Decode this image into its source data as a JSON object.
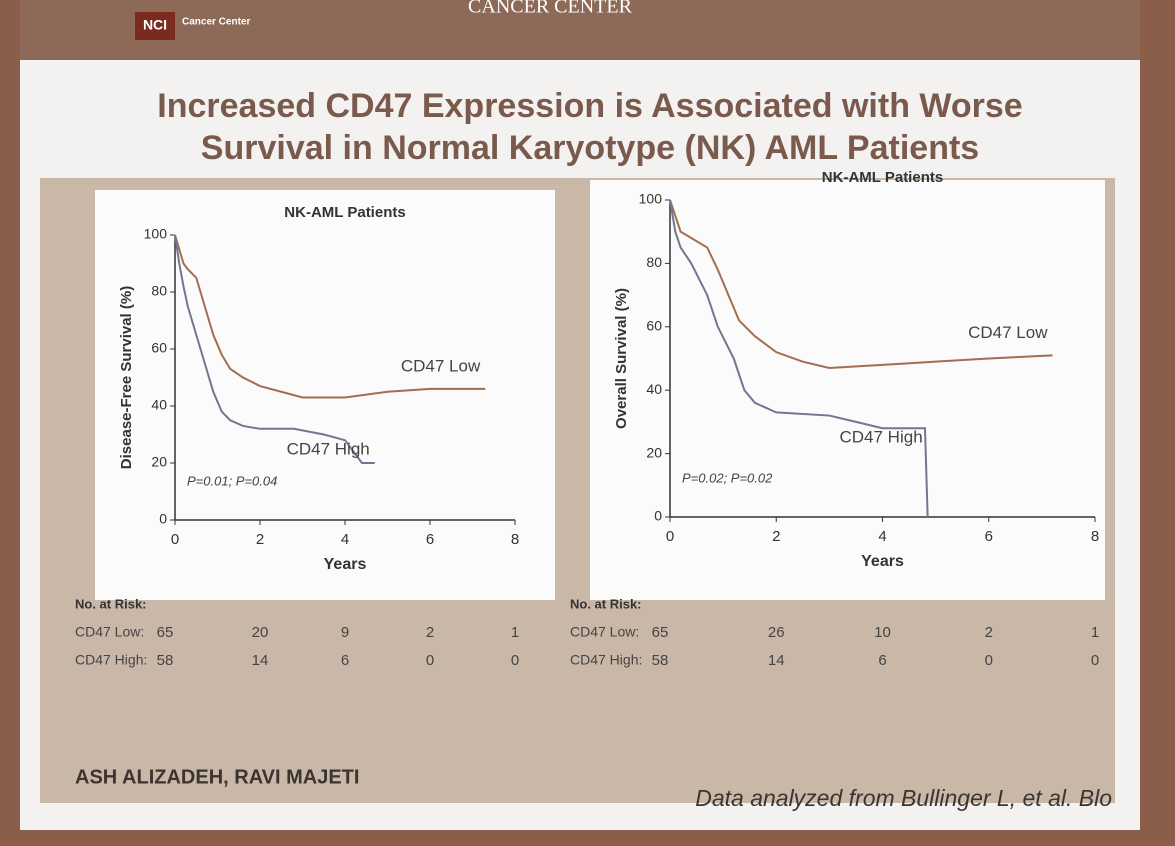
{
  "header": {
    "logo": "NCI",
    "logo_text": "Cancer Center",
    "banner": "CANCER CENTER"
  },
  "title_lines": [
    "Increased CD47 Expression is Associated with Worse",
    "Survival in Normal Karyotype (NK) AML Patients"
  ],
  "footer": {
    "authors": "ASH ALIZADEH, RAVI MAJETI",
    "source": "Data analyzed from Bullinger L, et al. Blo"
  },
  "chart_data": [
    {
      "type": "line",
      "title": "NK-AML Patients",
      "x_label": "Years",
      "y_label": "Disease-Free Survival (%)",
      "xlim": [
        0,
        8
      ],
      "xticks": [
        0,
        2,
        4,
        6,
        8
      ],
      "ylim": [
        0,
        100
      ],
      "yticks": [
        0,
        20,
        40,
        60,
        80,
        100
      ],
      "annotation": "P=0.01; P=0.04",
      "series": [
        {
          "name": "CD47 Low",
          "color": "#a26e50",
          "x": [
            0,
            0.1,
            0.2,
            0.3,
            0.5,
            0.7,
            0.9,
            1.1,
            1.3,
            1.6,
            2.0,
            2.5,
            3.0,
            4.0,
            5.0,
            6.0,
            7.3
          ],
          "values": [
            100,
            95,
            90,
            88,
            85,
            75,
            65,
            58,
            53,
            50,
            47,
            45,
            43,
            43,
            45,
            46,
            46
          ]
        },
        {
          "name": "CD47 High",
          "color": "#6f7890",
          "x": [
            0,
            0.1,
            0.2,
            0.3,
            0.5,
            0.7,
            0.9,
            1.1,
            1.3,
            1.6,
            2.0,
            2.8,
            3.5,
            4.0,
            4.4,
            4.7
          ],
          "values": [
            100,
            90,
            82,
            75,
            65,
            55,
            45,
            38,
            35,
            33,
            32,
            32,
            30,
            28,
            20,
            20
          ]
        }
      ],
      "risk_table": {
        "title": "No. at Risk:",
        "rows": [
          {
            "name": "CD47 Low:",
            "values": [
              65,
              20,
              9,
              2,
              1
            ]
          },
          {
            "name": "CD47 High:",
            "values": [
              58,
              14,
              6,
              0,
              0
            ]
          }
        ]
      }
    },
    {
      "type": "line",
      "title": "NK-AML Patients",
      "x_label": "Years",
      "y_label": "Overall Survival (%)",
      "xlim": [
        0,
        8
      ],
      "xticks": [
        0,
        2,
        4,
        6,
        8
      ],
      "ylim": [
        0,
        100
      ],
      "yticks": [
        0,
        20,
        40,
        60,
        80,
        100
      ],
      "annotation": "P=0.02; P=0.02",
      "series": [
        {
          "name": "CD47 Low",
          "color": "#a26e50",
          "x": [
            0,
            0.1,
            0.2,
            0.4,
            0.7,
            0.9,
            1.1,
            1.3,
            1.6,
            2.0,
            2.5,
            3.0,
            4.0,
            5.0,
            6.0,
            7.2
          ],
          "values": [
            100,
            95,
            90,
            88,
            85,
            78,
            70,
            62,
            57,
            52,
            49,
            47,
            48,
            49,
            50,
            51
          ]
        },
        {
          "name": "CD47 High",
          "color": "#6f7890",
          "x": [
            0,
            0.1,
            0.2,
            0.4,
            0.7,
            0.9,
            1.2,
            1.4,
            1.6,
            2.0,
            3.0,
            3.5,
            4.0,
            4.8,
            4.85
          ],
          "values": [
            100,
            90,
            85,
            80,
            70,
            60,
            50,
            40,
            36,
            33,
            32,
            30,
            28,
            28,
            0
          ]
        }
      ],
      "risk_table": {
        "title": "No. at Risk:",
        "rows": [
          {
            "name": "CD47 Low:",
            "values": [
              65,
              26,
              10,
              2,
              1
            ]
          },
          {
            "name": "CD47 High:",
            "values": [
              58,
              14,
              6,
              0,
              0
            ]
          }
        ]
      }
    }
  ]
}
